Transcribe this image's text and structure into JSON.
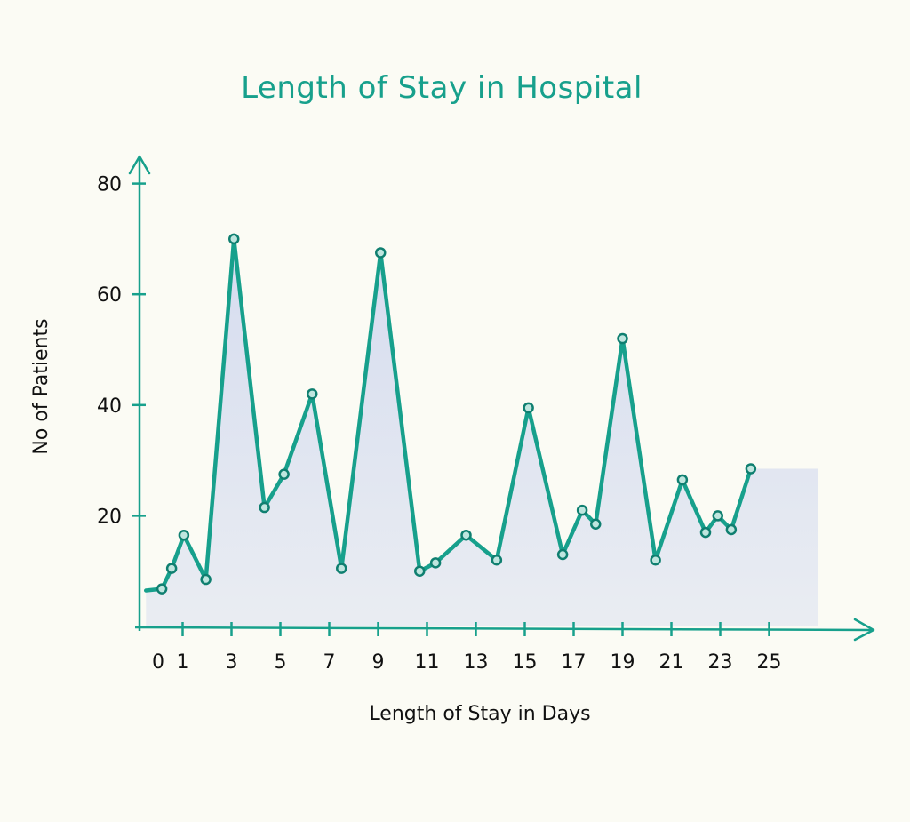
{
  "chart_data": {
    "type": "area",
    "title": "Length of Stay in Hospital",
    "xlabel": "Length of Stay in Days",
    "ylabel": "No of Patients",
    "x_ticks": [
      "0",
      "1",
      "3",
      "5",
      "7",
      "9",
      "11",
      "13",
      "15",
      "17",
      "19",
      "21",
      "23",
      "25"
    ],
    "y_ticks": [
      "20",
      "40",
      "60",
      "80"
    ],
    "ylim": [
      0,
      80
    ],
    "grid": false,
    "line_color": "#17a08c",
    "fill_color": "#c9d2ee",
    "points": [
      {
        "x": -0.5,
        "y": 6.5
      },
      {
        "x": 0.15,
        "y": 6.8
      },
      {
        "x": 0.55,
        "y": 10.5
      },
      {
        "x": 1.05,
        "y": 16.5
      },
      {
        "x": 1.95,
        "y": 8.5
      },
      {
        "x": 3.1,
        "y": 70
      },
      {
        "x": 4.35,
        "y": 21.5
      },
      {
        "x": 5.15,
        "y": 27.5
      },
      {
        "x": 6.3,
        "y": 42
      },
      {
        "x": 7.5,
        "y": 10.5
      },
      {
        "x": 9.1,
        "y": 67.5
      },
      {
        "x": 10.7,
        "y": 10
      },
      {
        "x": 11.35,
        "y": 11.5
      },
      {
        "x": 12.6,
        "y": 16.5
      },
      {
        "x": 13.85,
        "y": 12
      },
      {
        "x": 15.15,
        "y": 39.5
      },
      {
        "x": 16.55,
        "y": 13
      },
      {
        "x": 17.35,
        "y": 21
      },
      {
        "x": 17.9,
        "y": 18.5
      },
      {
        "x": 19.0,
        "y": 52
      },
      {
        "x": 20.35,
        "y": 12
      },
      {
        "x": 21.45,
        "y": 26.5
      },
      {
        "x": 22.4,
        "y": 17
      },
      {
        "x": 22.9,
        "y": 20
      },
      {
        "x": 23.45,
        "y": 17.5
      },
      {
        "x": 24.25,
        "y": 28.5
      }
    ]
  }
}
